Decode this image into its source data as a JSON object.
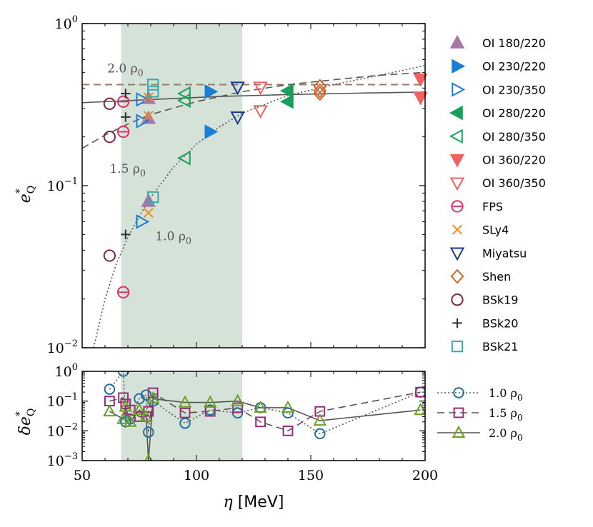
{
  "chart_data": [
    {
      "type": "scatter",
      "panel": "top",
      "ylabel": "e*_Q",
      "xlim": [
        50,
        200
      ],
      "ylim": [
        0.01,
        1
      ],
      "yscale": "log",
      "yticks": [
        {
          "v": 1,
          "label": "10^0"
        },
        {
          "v": 0.1,
          "label": "10^-1"
        },
        {
          "v": 0.01,
          "label": "10^-2"
        }
      ],
      "shaded_band": [
        67,
        120
      ],
      "legend_placement": "right",
      "annotations": [
        {
          "text": "2.0 ρ0",
          "x": 61,
          "y": 0.5
        },
        {
          "text": "1.5 ρ0",
          "x": 62,
          "y": 0.12
        },
        {
          "text": "1.0 ρ0",
          "x": 82,
          "y": 0.046
        }
      ],
      "reference_lines": [
        {
          "name": "horizontal dashed",
          "style": "dashed",
          "color": "#a07860",
          "points": [
            [
              50,
              0.42
            ],
            [
              200,
              0.42
            ]
          ]
        },
        {
          "name": "2.0 fit",
          "style": "solid",
          "color": "#555555",
          "points": [
            [
              50,
              0.325
            ],
            [
              80,
              0.34
            ],
            [
              110,
              0.355
            ],
            [
              140,
              0.365
            ],
            [
              170,
              0.372
            ],
            [
              200,
              0.378
            ]
          ]
        },
        {
          "name": "1.5 fit",
          "style": "dashed",
          "color": "#555555",
          "points": [
            [
              50,
              0.17
            ],
            [
              60,
              0.205
            ],
            [
              70,
              0.24
            ],
            [
              80,
              0.275
            ],
            [
              100,
              0.33
            ],
            [
              120,
              0.38
            ],
            [
              140,
              0.42
            ],
            [
              160,
              0.45
            ],
            [
              180,
              0.48
            ],
            [
              200,
              0.5
            ]
          ]
        },
        {
          "name": "1.0 fit",
          "style": "dotted",
          "color": "#555555",
          "points": [
            [
              55,
              0.01
            ],
            [
              60,
              0.02
            ],
            [
              65,
              0.033
            ],
            [
              70,
              0.048
            ],
            [
              75,
              0.065
            ],
            [
              80,
              0.085
            ],
            [
              90,
              0.13
            ],
            [
              100,
              0.18
            ],
            [
              110,
              0.23
            ],
            [
              120,
              0.28
            ],
            [
              140,
              0.36
            ],
            [
              160,
              0.42
            ],
            [
              180,
              0.48
            ],
            [
              200,
              0.55
            ]
          ]
        }
      ],
      "series": [
        {
          "name": "OI 180/220",
          "marker": "triangle-up",
          "filled": true,
          "color": "#a678a8",
          "points": [
            [
              79,
              0.345
            ],
            [
              79,
              0.26
            ],
            [
              79,
              0.08
            ]
          ]
        },
        {
          "name": "OI 230/220",
          "marker": "triangle-right",
          "filled": true,
          "color": "#1a7fd4",
          "points": [
            [
              106,
              0.38
            ],
            [
              106,
              0.215
            ]
          ]
        },
        {
          "name": "OI 230/350",
          "marker": "triangle-right",
          "filled": false,
          "color": "#1a7fd4",
          "points": [
            [
              76,
              0.34
            ],
            [
              76,
              0.25
            ],
            [
              76,
              0.06
            ]
          ]
        },
        {
          "name": "OI 280/220",
          "marker": "triangle-left",
          "filled": true,
          "color": "#18a05a",
          "points": [
            [
              140,
              0.385
            ],
            [
              140,
              0.33
            ]
          ]
        },
        {
          "name": "OI 280/350",
          "marker": "triangle-left",
          "filled": false,
          "color": "#18a05a",
          "points": [
            [
              95,
              0.37
            ],
            [
              95,
              0.335
            ],
            [
              95,
              0.148
            ]
          ]
        },
        {
          "name": "OI 360/220",
          "marker": "triangle-down",
          "filled": true,
          "color": "#f06060",
          "points": [
            [
              198,
              0.455
            ],
            [
              198,
              0.35
            ]
          ]
        },
        {
          "name": "OI 360/350",
          "marker": "triangle-down",
          "filled": false,
          "color": "#f06060",
          "points": [
            [
              128,
              0.405
            ],
            [
              128,
              0.29
            ]
          ]
        },
        {
          "name": "FPS",
          "marker": "circle-bar",
          "filled": false,
          "color": "#e0306a",
          "points": [
            [
              68,
              0.33
            ],
            [
              68,
              0.215
            ],
            [
              68,
              0.022
            ]
          ]
        },
        {
          "name": "SLy4",
          "marker": "x",
          "filled": false,
          "color": "#f08a20",
          "points": [
            [
              79,
              0.35
            ],
            [
              79,
              0.27
            ],
            [
              79,
              0.068
            ]
          ]
        },
        {
          "name": "Miyatsu",
          "marker": "triangle-down",
          "filled": false,
          "color": "#1a3a8a",
          "points": [
            [
              118,
              0.405
            ],
            [
              118,
              0.265
            ]
          ]
        },
        {
          "name": "Shen",
          "marker": "diamond",
          "filled": false,
          "color": "#c86a30",
          "points": [
            [
              154,
              0.41
            ],
            [
              154,
              0.385
            ],
            [
              154,
              0.37
            ]
          ]
        },
        {
          "name": "BSk19",
          "marker": "circle",
          "filled": false,
          "color": "#7a2a3a",
          "points": [
            [
              62,
              0.32
            ],
            [
              62,
              0.2
            ],
            [
              62,
              0.037
            ]
          ]
        },
        {
          "name": "BSk20",
          "marker": "plus",
          "filled": false,
          "color": "#333333",
          "points": [
            [
              69,
              0.37
            ],
            [
              69,
              0.265
            ],
            [
              69,
              0.05
            ]
          ]
        },
        {
          "name": "BSk21",
          "marker": "square",
          "filled": false,
          "color": "#3aa8a8",
          "points": [
            [
              81,
              0.42
            ],
            [
              81,
              0.38
            ],
            [
              81,
              0.085
            ]
          ]
        }
      ]
    },
    {
      "type": "line",
      "panel": "bottom",
      "xlabel": "η [MeV]",
      "ylabel": "δe*_Q",
      "xlim": [
        50,
        200
      ],
      "ylim": [
        0.001,
        1
      ],
      "yscale": "log",
      "xticks": [
        50,
        100,
        150,
        200
      ],
      "yticks": [
        {
          "v": 1,
          "label": "10^0"
        },
        {
          "v": 0.1,
          "label": "10^-1"
        },
        {
          "v": 0.01,
          "label": "10^-2"
        },
        {
          "v": 0.001,
          "label": "10^-3"
        }
      ],
      "shaded_band": [
        67,
        120
      ],
      "legend_placement": "right",
      "series": [
        {
          "name": "1.0 ρ0",
          "marker": "circle",
          "style": "dotted",
          "color": "#1f6f9f",
          "points": [
            [
              62,
              0.25
            ],
            [
              68,
              1.0
            ],
            [
              69,
              0.02
            ],
            [
              71,
              0.025
            ],
            [
              75,
              0.12
            ],
            [
              78,
              0.16
            ],
            [
              79,
              0.009
            ],
            [
              81,
              0.1
            ],
            [
              95,
              0.018
            ],
            [
              106,
              0.05
            ],
            [
              118,
              0.04
            ],
            [
              128,
              0.06
            ],
            [
              140,
              0.04
            ],
            [
              154,
              0.008
            ],
            [
              198,
              0.2
            ]
          ]
        },
        {
          "name": "1.5 ρ0",
          "marker": "square",
          "style": "dashed",
          "color": "#9a2a7a",
          "points": [
            [
              62,
              0.1
            ],
            [
              68,
              0.13
            ],
            [
              69,
              0.08
            ],
            [
              71,
              0.05
            ],
            [
              75,
              0.03
            ],
            [
              78,
              0.03
            ],
            [
              79,
              0.045
            ],
            [
              81,
              0.19
            ],
            [
              95,
              0.04
            ],
            [
              106,
              0.045
            ],
            [
              118,
              0.06
            ],
            [
              128,
              0.02
            ],
            [
              140,
              0.01
            ],
            [
              154,
              0.045
            ],
            [
              198,
              0.2
            ]
          ]
        },
        {
          "name": "2.0 ρ0",
          "marker": "triangle-up",
          "style": "solid",
          "color": "#6aa020",
          "points": [
            [
              62,
              0.045
            ],
            [
              68,
              0.025
            ],
            [
              69,
              0.065
            ],
            [
              71,
              0.02
            ],
            [
              75,
              0.05
            ],
            [
              78,
              0.03
            ],
            [
              79,
              0.001
            ],
            [
              81,
              0.12
            ],
            [
              95,
              0.09
            ],
            [
              106,
              0.09
            ],
            [
              118,
              0.1
            ],
            [
              128,
              0.06
            ],
            [
              140,
              0.06
            ],
            [
              154,
              0.022
            ],
            [
              198,
              0.05
            ]
          ]
        }
      ]
    }
  ]
}
